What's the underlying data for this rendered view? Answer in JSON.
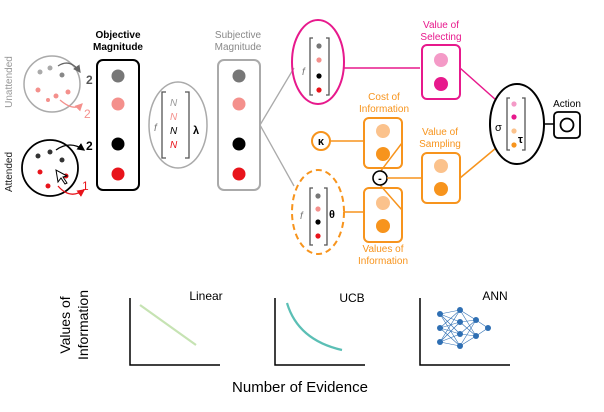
{
  "labels": {
    "unattended": "Unattended",
    "attended": "Attended",
    "num_unatt_black": "2",
    "num_unatt_red": "2",
    "num_att_black": "2",
    "num_att_red": "1",
    "objective_line1": "Objective",
    "objective_line2": "Magnitude",
    "subjective_line1": "Subjective",
    "subjective_line2": "Magnitude",
    "f_norm": "f",
    "norm_n": "N",
    "norm_lambda": "λ",
    "value_selecting_line1": "Value of",
    "value_selecting_line2": "Selecting",
    "f_select": "f",
    "cost_line1": "Cost of",
    "cost_line2": "Information",
    "kappa": "κ",
    "minus": "-",
    "value_sampling_line1": "Value of",
    "value_sampling_line2": "Sampling",
    "f_info": "f",
    "theta": "θ",
    "values_info_line1": "Values of",
    "values_info_line2": "Information",
    "sigma": "σ",
    "tau": "τ",
    "action": "Action"
  },
  "bottom": {
    "ylabel_line1": "Values of",
    "ylabel_line2": "Information",
    "xlabel": "Number of Evidence",
    "linear": "Linear",
    "ucb": "UCB",
    "ann": "ANN"
  },
  "colors": {
    "gray": "#777777",
    "light_red": "#f4908c",
    "black": "#000000",
    "red": "#e8141b",
    "magenta": "#e7198c",
    "light_magenta": "#f49ac7",
    "orange": "#f7941d",
    "light_orange": "#fbc28c",
    "green": "#c6e3b3",
    "teal": "#5bbfb5",
    "ann_blue": "#2f6fb3"
  }
}
